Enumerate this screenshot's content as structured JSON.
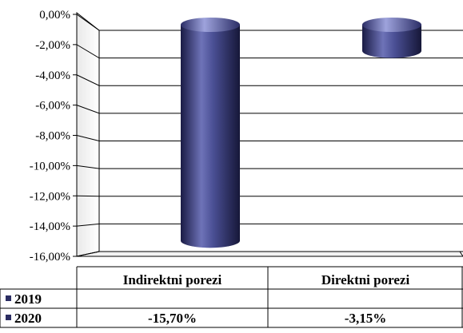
{
  "chart_data": {
    "type": "bar",
    "categories": [
      "Indirektni porezi",
      "Direktni porezi"
    ],
    "series": [
      {
        "name": "2019",
        "values": [
          null,
          null
        ]
      },
      {
        "name": "2020",
        "values": [
          -15.7,
          -3.15
        ]
      }
    ],
    "value_labels": [
      "-15,70%",
      "-3,15%"
    ],
    "yticks": [
      0,
      -2,
      -4,
      -6,
      -8,
      -10,
      -12,
      -14,
      -16
    ],
    "ytick_labels": [
      "0,00%",
      "-2,00%",
      "-4,00%",
      "-6,00%",
      "-8,00%",
      "-10,00%",
      "-12,00%",
      "-14,00%",
      "-16,00%"
    ],
    "ylim": [
      -16,
      0
    ],
    "grid": true,
    "legend": "data-table-left",
    "bar_style": "3d-cylinder",
    "colors": {
      "bar": "#2e2f6b",
      "bar_light": "#7f84c8",
      "marker": "#2b2d62"
    }
  }
}
